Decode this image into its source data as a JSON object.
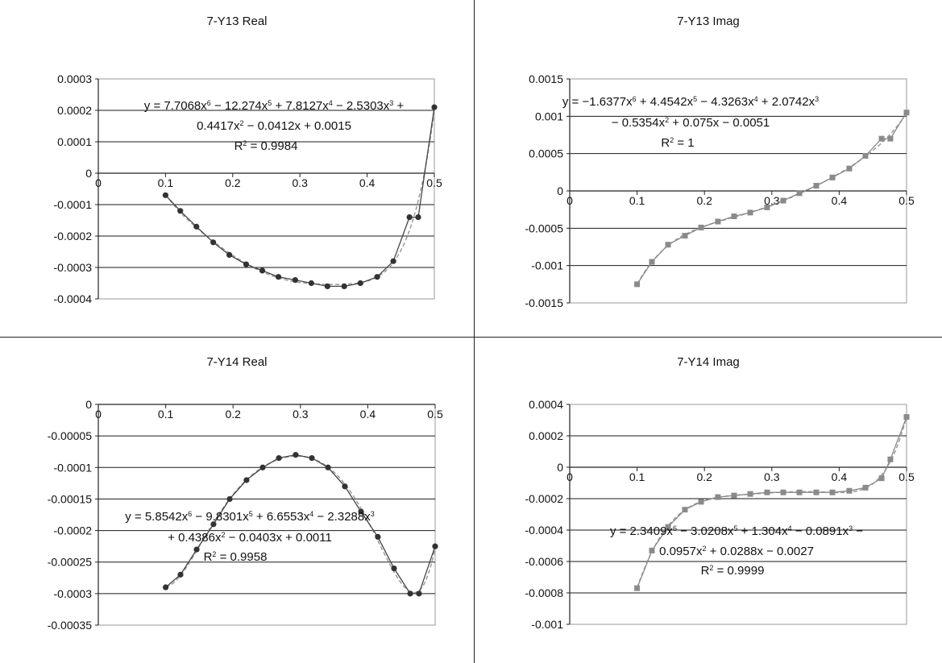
{
  "chart_data": [
    {
      "type": "scatter",
      "title": "7-Y13 Real",
      "ylim": [
        -0.0004,
        0.0003
      ],
      "yticks": [
        "0.0003",
        "0.0002",
        "0.0001",
        "0",
        "-0.0001",
        "-0.0002",
        "-0.0003",
        "-0.0004"
      ],
      "xlim": [
        0,
        0.5
      ],
      "xticks": [
        "0",
        "0.1",
        "0.2",
        "0.3",
        "0.4",
        "0.5"
      ],
      "marker": "circle",
      "color": "#444444",
      "grid": true,
      "trendline": "polynomial-6",
      "series": [
        {
          "x": [
            0.1,
            0.122,
            0.146,
            0.171,
            0.195,
            0.22,
            0.244,
            0.268,
            0.293,
            0.317,
            0.341,
            0.366,
            0.39,
            0.415,
            0.439,
            0.463,
            0.476,
            0.5
          ],
          "y": [
            -7e-05,
            -0.00012,
            -0.00017,
            -0.00022,
            -0.00026,
            -0.00029,
            -0.00031,
            -0.00033,
            -0.00034,
            -0.00035,
            -0.00036,
            -0.00036,
            -0.00035,
            -0.00033,
            -0.00028,
            -0.00014,
            -0.00014,
            0.00021
          ]
        }
      ],
      "equation": [
        "y = 7.7068x^6 − 12.274x^5 + 7.8127x^4 − 2.5303x^3 +",
        "0.4417x^2 − 0.0412x + 0.0015"
      ],
      "r2": "R^2 = 0.9984"
    },
    {
      "type": "scatter",
      "title": "7-Y13 Imag",
      "ylim": [
        -0.0015,
        0.0015
      ],
      "yticks": [
        "0.0015",
        "0.001",
        "0.0005",
        "0",
        "-0.0005",
        "-0.001",
        "-0.0015"
      ],
      "xlim": [
        0,
        0.5
      ],
      "xticks": [
        "0",
        "0.1",
        "0.2",
        "0.3",
        "0.4",
        "0.5"
      ],
      "marker": "square",
      "color": "#888888",
      "grid": true,
      "trendline": "polynomial-6",
      "series": [
        {
          "x": [
            0.1,
            0.122,
            0.146,
            0.171,
            0.195,
            0.22,
            0.244,
            0.268,
            0.293,
            0.317,
            0.341,
            0.366,
            0.39,
            0.415,
            0.439,
            0.463,
            0.476,
            0.5
          ],
          "y": [
            -0.00125,
            -0.00095,
            -0.00072,
            -0.0006,
            -0.00049,
            -0.00041,
            -0.00034,
            -0.00029,
            -0.00022,
            -0.00013,
            -3e-05,
            7e-05,
            0.00018,
            0.0003,
            0.00047,
            0.0007,
            0.0007,
            0.00105
          ]
        }
      ],
      "equation": [
        "y = −1.6377x^6 + 4.4542x^5 − 4.3263x^4 + 2.0742x^3",
        "− 0.5354x^2 + 0.075x − 0.0051"
      ],
      "r2": "R^2 = 1"
    },
    {
      "type": "scatter",
      "title": "7-Y14 Real",
      "ylim": [
        -0.00035,
        0
      ],
      "yticks": [
        "0",
        "-0.00005",
        "-0.0001",
        "-0.00015",
        "-0.0002",
        "-0.00025",
        "-0.0003",
        "-0.00035"
      ],
      "xlim": [
        0,
        0.5
      ],
      "xticks": [
        "0",
        "0.1",
        "0.2",
        "0.3",
        "0.4",
        "0.5"
      ],
      "marker": "circle",
      "color": "#444444",
      "grid": true,
      "trendline": "polynomial-6",
      "series": [
        {
          "x": [
            0.1,
            0.122,
            0.146,
            0.171,
            0.195,
            0.22,
            0.244,
            0.268,
            0.293,
            0.317,
            0.341,
            0.366,
            0.39,
            0.415,
            0.439,
            0.463,
            0.476,
            0.5
          ],
          "y": [
            -0.00029,
            -0.00027,
            -0.00023,
            -0.00019,
            -0.00015,
            -0.00012,
            -0.0001,
            -8.5e-05,
            -8e-05,
            -8.5e-05,
            -0.0001,
            -0.00013,
            -0.00017,
            -0.00021,
            -0.00026,
            -0.0003,
            -0.0003,
            -0.000225
          ]
        }
      ],
      "equation": [
        "y = 5.8542x^6 − 9.8301x^5 + 6.6553x^4 − 2.3288x^3",
        "+ 0.4386x^2 − 0.0403x + 0.0011"
      ],
      "r2": "R^2 = 0.9958"
    },
    {
      "type": "scatter",
      "title": "7-Y14 Imag",
      "ylim": [
        -0.001,
        0.0004
      ],
      "yticks": [
        "0.0004",
        "0.0002",
        "0",
        "-0.0002",
        "-0.0004",
        "-0.0006",
        "-0.0008",
        "-0.001"
      ],
      "xlim": [
        0,
        0.5
      ],
      "xticks": [
        "0",
        "0.1",
        "0.2",
        "0.3",
        "0.4",
        "0.5"
      ],
      "marker": "square",
      "color": "#888888",
      "grid": true,
      "trendline": "polynomial-6",
      "series": [
        {
          "x": [
            0.1,
            0.122,
            0.146,
            0.171,
            0.195,
            0.22,
            0.244,
            0.268,
            0.293,
            0.317,
            0.341,
            0.366,
            0.39,
            0.415,
            0.439,
            0.463,
            0.476,
            0.5
          ],
          "y": [
            -0.00077,
            -0.00053,
            -0.00038,
            -0.00027,
            -0.00022,
            -0.00019,
            -0.00018,
            -0.00017,
            -0.00016,
            -0.00016,
            -0.00016,
            -0.00016,
            -0.00016,
            -0.00015,
            -0.00013,
            -7e-05,
            5e-05,
            0.00032
          ]
        }
      ],
      "equation": [
        "y = 2.3409x^6 − 3.0208x^5 + 1.304x^4 − 0.0891x^3 −",
        "0.0957x^2 + 0.0288x − 0.0027"
      ],
      "r2": "R^2 = 0.9999"
    }
  ]
}
